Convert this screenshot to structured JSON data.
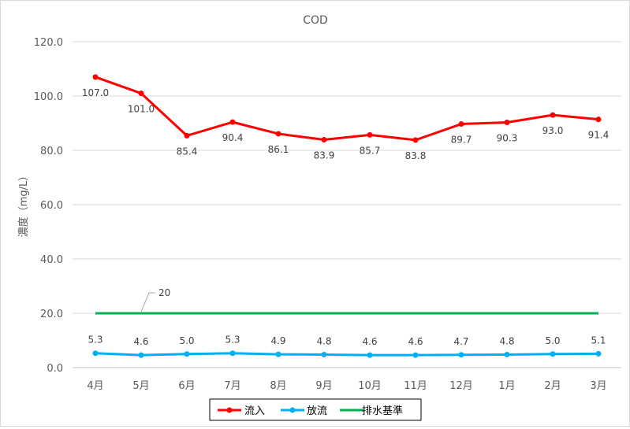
{
  "chart_data": {
    "type": "line",
    "title": "COD",
    "xlabel": "",
    "ylabel": "濃度（mg/L）",
    "ylim": [
      0,
      120
    ],
    "yticks": [
      "0.0",
      "20.0",
      "40.0",
      "60.0",
      "80.0",
      "100.0",
      "120.0"
    ],
    "categories": [
      "4月",
      "5月",
      "6月",
      "7月",
      "8月",
      "9月",
      "10月",
      "11月",
      "12月",
      "1月",
      "2月",
      "3月"
    ],
    "grid": true,
    "legend_position": "bottom",
    "series": [
      {
        "name": "流入",
        "color": "#ff0000",
        "marker": true,
        "values": [
          107.0,
          101.0,
          85.4,
          90.4,
          86.1,
          83.9,
          85.7,
          83.8,
          89.7,
          90.3,
          93.0,
          91.4
        ],
        "labels": [
          "107.0",
          "101.0",
          "85.4",
          "90.4",
          "86.1",
          "83.9",
          "85.7",
          "83.8",
          "89.7",
          "90.3",
          "93.0",
          "91.4"
        ]
      },
      {
        "name": "放流",
        "color": "#00b0f0",
        "marker": true,
        "values": [
          5.3,
          4.6,
          5.0,
          5.3,
          4.9,
          4.8,
          4.6,
          4.6,
          4.7,
          4.8,
          5.0,
          5.1
        ],
        "labels": [
          "5.3",
          "4.6",
          "5.0",
          "5.3",
          "4.9",
          "4.8",
          "4.6",
          "4.6",
          "4.7",
          "4.8",
          "5.0",
          "5.1"
        ]
      },
      {
        "name": "排水基準",
        "color": "#00b050",
        "marker": false,
        "values": [
          20,
          20,
          20,
          20,
          20,
          20,
          20,
          20,
          20,
          20,
          20,
          20
        ],
        "callout": "20"
      }
    ]
  }
}
